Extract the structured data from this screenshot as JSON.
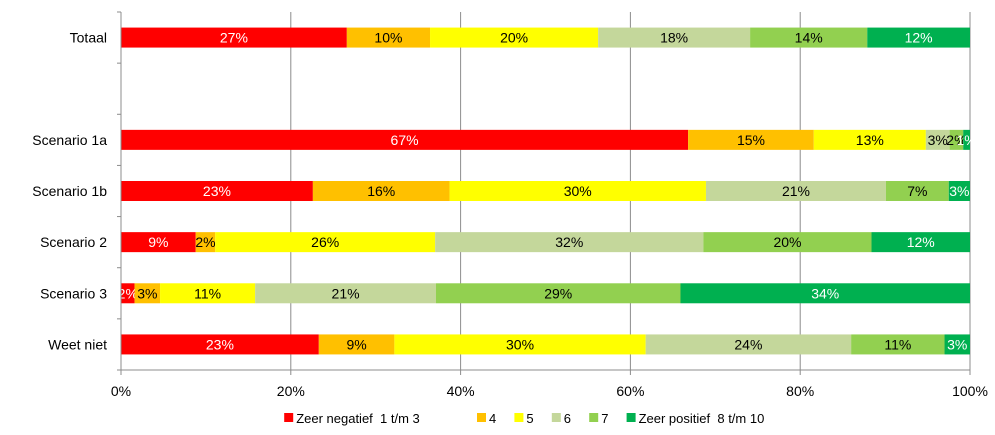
{
  "chart_data": {
    "type": "bar",
    "orientation": "horizontal",
    "stacked": true,
    "percent_axis": true,
    "categories": [
      "Totaal",
      "",
      "Scenario 1a",
      "Scenario 1b",
      "Scenario 2",
      "Scenario 3",
      "Weet niet"
    ],
    "series": [
      {
        "name": "Zeer negatief  1 t/m 3",
        "color": "#ff0000",
        "label_color": "#ffffff",
        "values": [
          26.6,
          null,
          66.8,
          22.6,
          8.8,
          1.6,
          23.3
        ],
        "labels": [
          "27%",
          "",
          "67%",
          "23%",
          "9%",
          "2%",
          "23%"
        ]
      },
      {
        "name": "4",
        "color": "#ffc000",
        "label_color": "#000000",
        "values": [
          9.8,
          null,
          14.8,
          16.1,
          2.3,
          3.0,
          8.9
        ],
        "labels": [
          "10%",
          "",
          "15%",
          "16%",
          "2%",
          "3%",
          "9%"
        ]
      },
      {
        "name": "5",
        "color": "#ffff00",
        "label_color": "#000000",
        "values": [
          19.8,
          null,
          13.2,
          30.2,
          25.9,
          11.2,
          29.6
        ],
        "labels": [
          "20%",
          "",
          "13%",
          "30%",
          "26%",
          "11%",
          "30%"
        ]
      },
      {
        "name": "6",
        "color": "#c4d79b",
        "label_color": "#000000",
        "values": [
          17.9,
          null,
          2.8,
          21.2,
          31.6,
          21.3,
          24.2
        ],
        "labels": [
          "18%",
          "",
          "3%",
          "21%",
          "32%",
          "21%",
          "24%"
        ]
      },
      {
        "name": "7",
        "color": "#92d050",
        "label_color": "#000000",
        "values": [
          13.8,
          null,
          1.6,
          7.4,
          19.8,
          28.8,
          11.0
        ],
        "labels": [
          "14%",
          "",
          "2%",
          "7%",
          "20%",
          "29%",
          "11%"
        ]
      },
      {
        "name": "Zeer positief  8 t/m 10",
        "color": "#00b050",
        "label_color": "#ffffff",
        "values": [
          12.1,
          null,
          0.8,
          2.5,
          11.6,
          34.1,
          3.0
        ],
        "labels": [
          "12%",
          "",
          "1%",
          "3%",
          "12%",
          "34%",
          "3%"
        ]
      }
    ],
    "x_ticks": [
      "0%",
      "20%",
      "40%",
      "60%",
      "80%",
      "100%"
    ],
    "xlim": [
      0,
      100
    ],
    "grid": "vertical",
    "legend": "bottom"
  }
}
